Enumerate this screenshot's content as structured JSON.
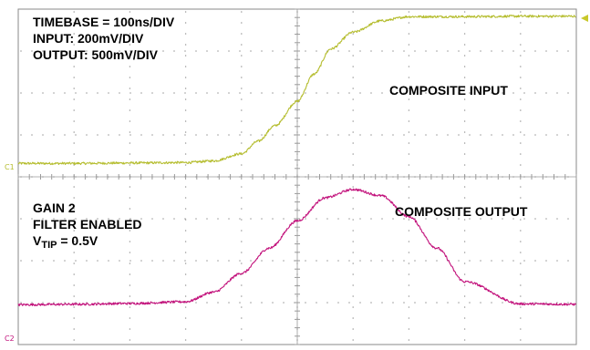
{
  "annotations": {
    "timebase": "TIMEBASE = 100ns/DIV",
    "input_scale": "INPUT: 200mV/DIV",
    "output_scale": "OUTPUT: 500mV/DIV",
    "input_trace": "COMPOSITE INPUT",
    "output_trace": "COMPOSITE OUTPUT",
    "gain": "GAIN 2",
    "filter": "FILTER ENABLED",
    "vtip_prefix": "V",
    "vtip_sub": "TIP",
    "vtip_value": " = 0.5V"
  },
  "channel_markers": {
    "ch1": "C1",
    "ch2": "C2"
  },
  "colors": {
    "ch1": "#b5bd2f",
    "ch2": "#c2117b",
    "grid": "#9a9a9a",
    "frame": "#8a8a8a",
    "trigger": "#c8c82a"
  },
  "chart_data": {
    "type": "line",
    "grid": true,
    "x_divisions": 10,
    "y_divisions": 8,
    "xlim": [
      0,
      10
    ],
    "ylim": [
      0,
      8
    ],
    "series": [
      {
        "name": "COMPOSITE INPUT",
        "x": [
          0,
          1,
          2,
          3,
          3.5,
          4,
          4.3,
          4.6,
          5,
          5.3,
          5.6,
          6,
          6.5,
          7,
          8,
          9,
          10
        ],
        "y": [
          4.32,
          4.32,
          4.33,
          4.34,
          4.38,
          4.55,
          4.85,
          5.22,
          5.8,
          6.45,
          7.05,
          7.45,
          7.72,
          7.82,
          7.82,
          7.83,
          7.83
        ]
      },
      {
        "name": "COMPOSITE OUTPUT",
        "x": [
          0,
          1,
          2,
          3,
          3.5,
          4,
          4.5,
          5,
          5.5,
          6,
          6.5,
          7,
          7.5,
          8,
          9,
          10
        ],
        "y": [
          0.95,
          0.96,
          0.98,
          1.02,
          1.25,
          1.7,
          2.3,
          2.95,
          3.5,
          3.7,
          3.55,
          3.05,
          2.3,
          1.5,
          0.97,
          0.96
        ]
      }
    ]
  }
}
